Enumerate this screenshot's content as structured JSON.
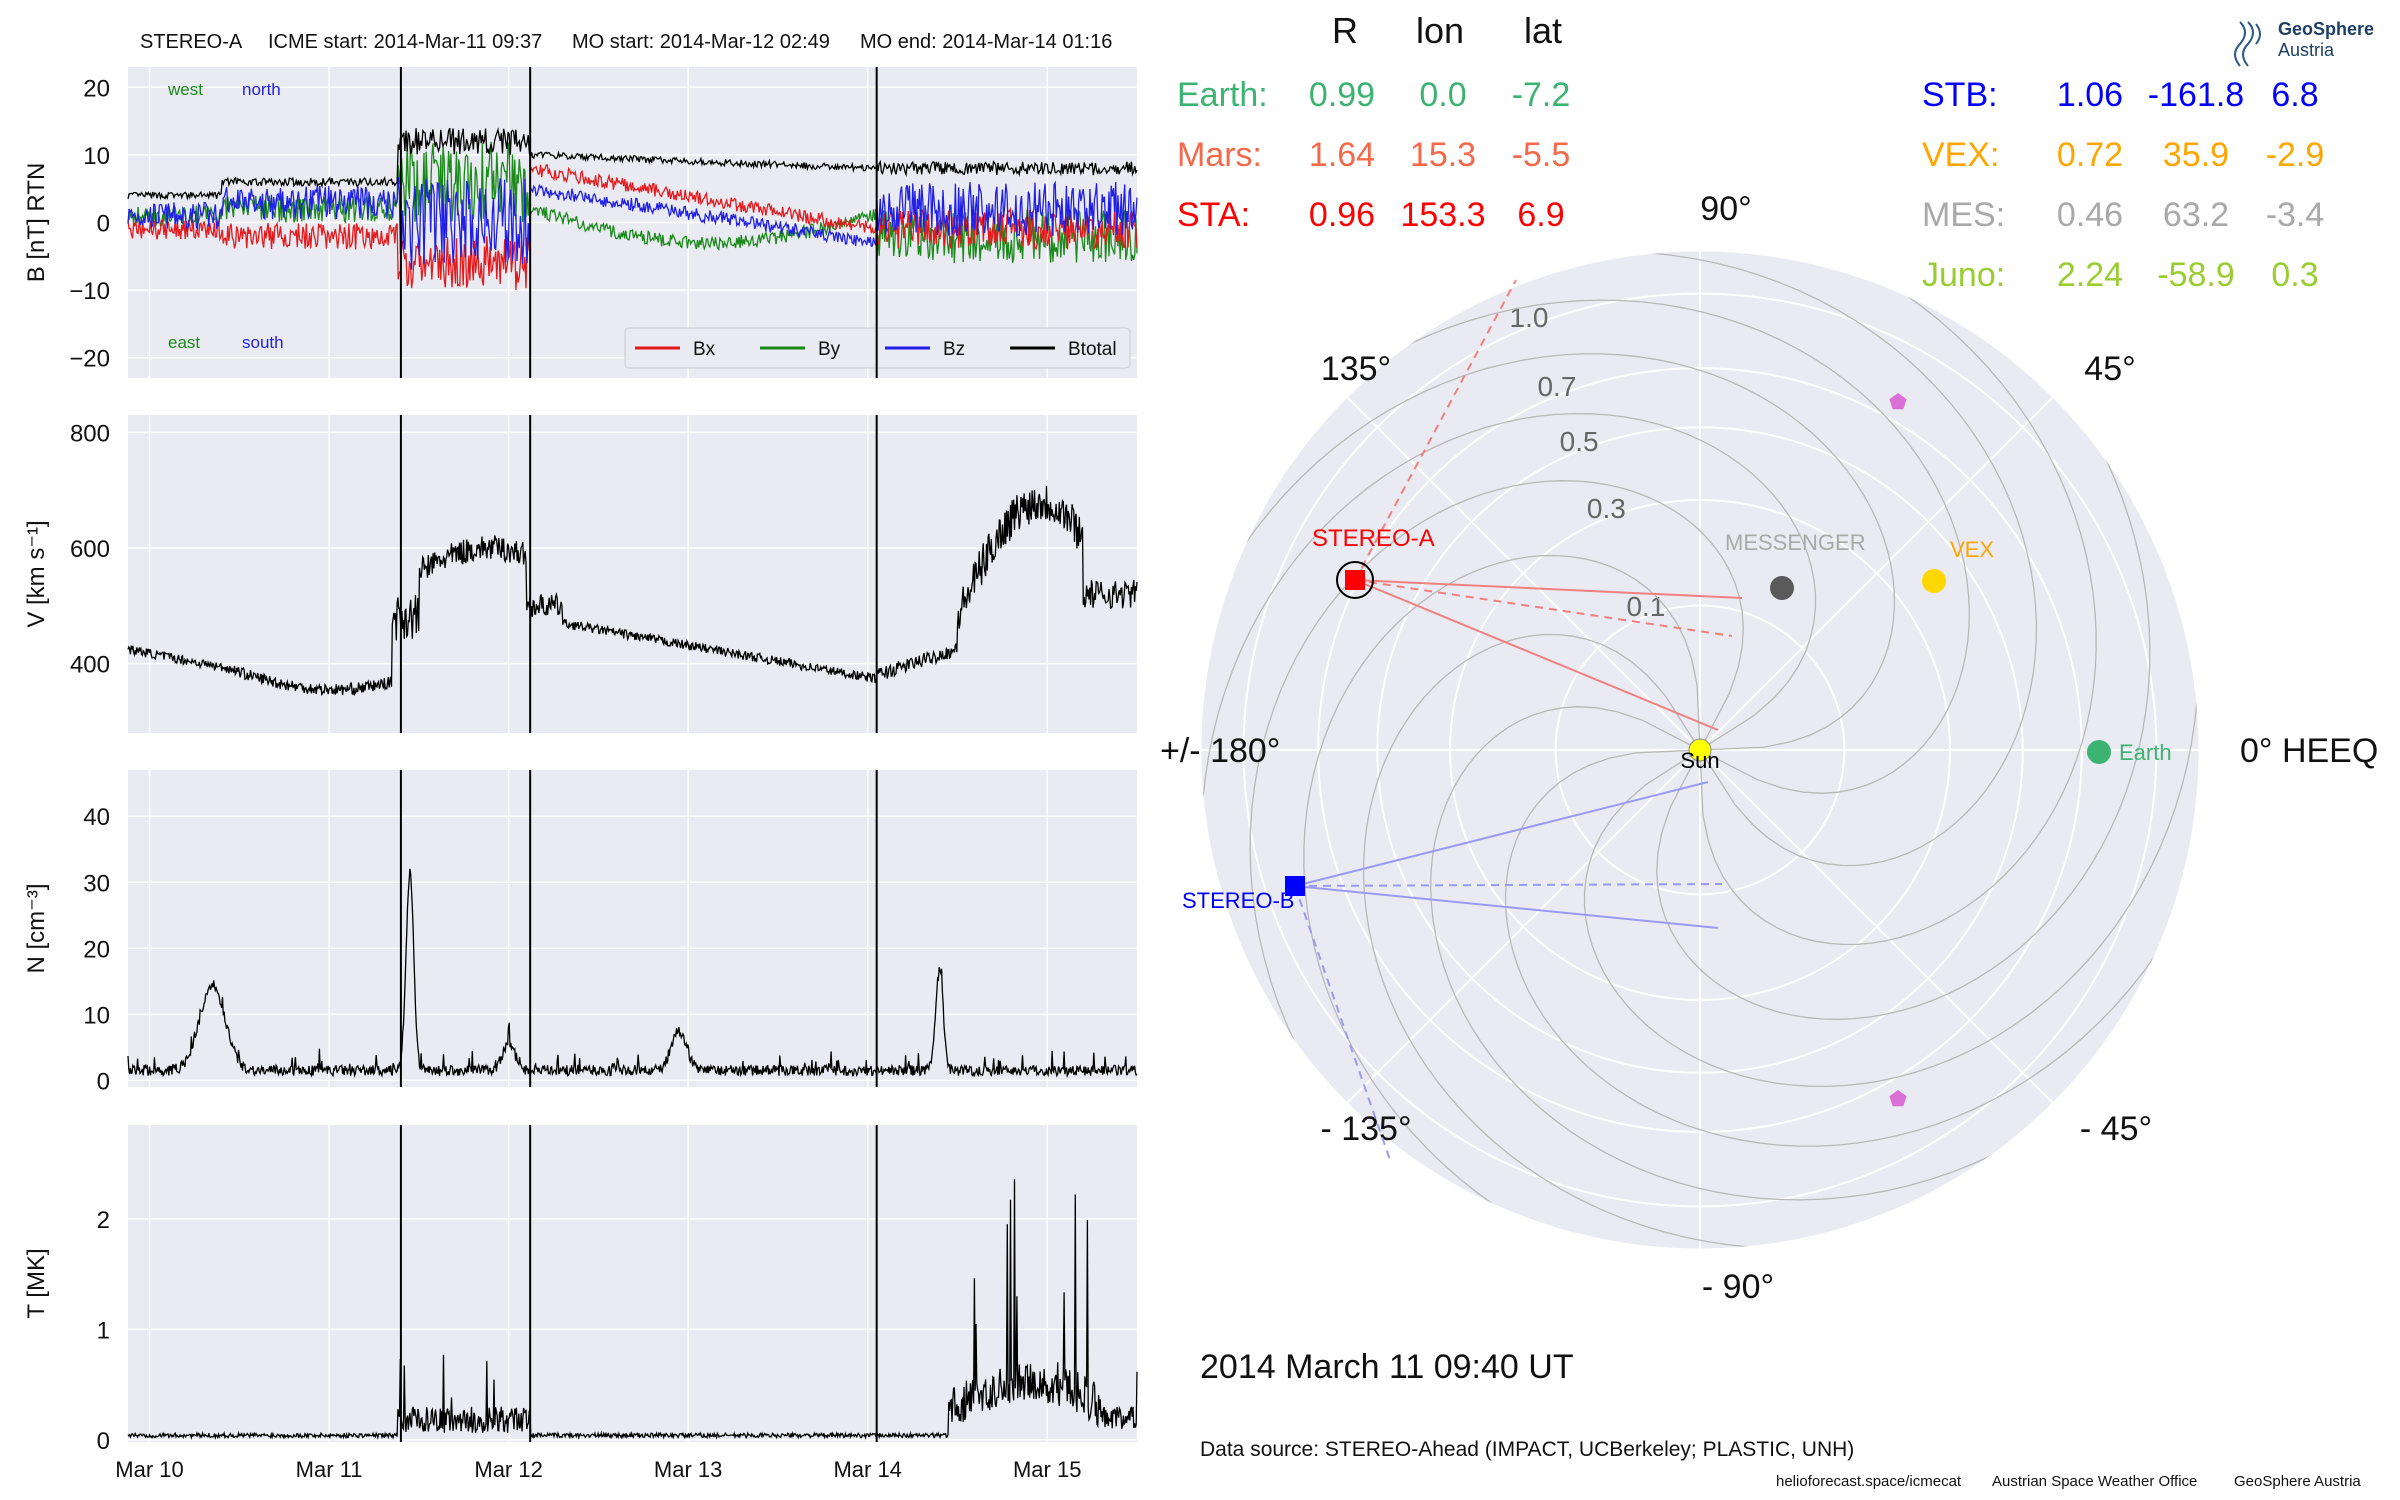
{
  "header": {
    "spacecraft": "STEREO-A",
    "icme_start": "ICME start: 2014-Mar-11 09:37",
    "mo_start": "MO start: 2014-Mar-12 02:49",
    "mo_end": "MO end: 2014-Mar-14 01:16"
  },
  "colors": {
    "panel_bg": "#eaeaf2",
    "grid": "#ffffff",
    "bx": "#e41a1c",
    "by": "#1a8a1a",
    "bz": "#1f1fe6",
    "btotal": "#000000",
    "earth": "#3cb371",
    "mars": "#f4694a",
    "sta": "#ff0000",
    "stb": "#0000ff",
    "vex": "#ffa500",
    "mes": "#a9a9a9",
    "juno": "#9acd32",
    "psp": "#da70d6",
    "sun": "#ffff00"
  },
  "timeseries": {
    "x_ticks": [
      "Mar 10",
      "Mar 11",
      "Mar 12",
      "Mar 13",
      "Mar 14",
      "Mar 15"
    ],
    "x_range_days": [
      9.88,
      15.5
    ],
    "event_lines_days": [
      11.4,
      12.12,
      14.05
    ],
    "panels": [
      {
        "id": "mag",
        "ylabel": "B [nT] RTN",
        "ylim": [
          -23,
          23
        ],
        "yticks": [
          "20",
          "10",
          "0",
          "−10",
          "−20"
        ],
        "ytick_values": [
          20,
          10,
          0,
          -10,
          -20
        ],
        "corner_labels": {
          "west": "west",
          "north": "north",
          "east": "east",
          "south": "south"
        },
        "legend": [
          "Bx",
          "By",
          "Bz",
          "Btotal"
        ]
      },
      {
        "id": "speed",
        "ylabel": "V [km s⁻¹]",
        "ylim": [
          280,
          830
        ],
        "yticks": [
          "800",
          "600",
          "400"
        ],
        "ytick_values": [
          800,
          600,
          400
        ]
      },
      {
        "id": "density",
        "ylabel": "N [cm⁻³]",
        "ylim": [
          -1,
          47
        ],
        "yticks": [
          "40",
          "30",
          "20",
          "10",
          "0"
        ],
        "ytick_values": [
          40,
          30,
          20,
          10,
          0
        ]
      },
      {
        "id": "temperature",
        "ylabel": "T [MK]",
        "ylim": [
          -0.02,
          2.85
        ],
        "yticks": [
          "2",
          "1",
          "0"
        ],
        "ytick_values": [
          2,
          1,
          0
        ]
      }
    ]
  },
  "table": {
    "headers": [
      "R",
      "lon",
      "lat"
    ],
    "left": [
      {
        "name": "Earth:",
        "R": "0.99",
        "lon": "0.0",
        "lat": "-7.2",
        "color_key": "earth"
      },
      {
        "name": "Mars:",
        "R": "1.64",
        "lon": "15.3",
        "lat": "-5.5",
        "color_key": "mars"
      },
      {
        "name": "STA:",
        "R": "0.96",
        "lon": "153.3",
        "lat": "6.9",
        "color_key": "sta"
      }
    ],
    "right": [
      {
        "name": "STB:",
        "R": "1.06",
        "lon": "-161.8",
        "lat": "6.8",
        "color_key": "stb"
      },
      {
        "name": "VEX:",
        "R": "0.72",
        "lon": "35.9",
        "lat": "-2.9",
        "color_key": "vex"
      },
      {
        "name": "MES:",
        "R": "0.46",
        "lon": "63.2",
        "lat": "-3.4",
        "color_key": "mes"
      },
      {
        "name": "Juno:",
        "R": "2.24",
        "lon": "-58.9",
        "lat": "0.3",
        "color_key": "juno"
      }
    ]
  },
  "polar": {
    "angle_labels": {
      "a0": "0° HEEQ",
      "a45": "45°",
      "a90": "90°",
      "a135": "135°",
      "a180": "+/- 180°",
      "am135": "- 135°",
      "am90": "- 90°",
      "am45": "- 45°"
    },
    "radial_labels": [
      "0.1",
      "0.3",
      "0.5",
      "0.7",
      "1.0"
    ],
    "radial_values": [
      0.1,
      0.3,
      0.5,
      0.7,
      1.0
    ],
    "bodies": [
      {
        "name": "Sun",
        "label": "Sun",
        "r": 0.0,
        "lon": 0.0
      },
      {
        "name": "Earth",
        "label": "Earth",
        "r": 0.99,
        "lon": 0.0
      },
      {
        "name": "STEREO-A",
        "label": "STEREO-A",
        "r": 0.96,
        "lon": 153.3
      },
      {
        "name": "STEREO-B",
        "label": "STEREO-B",
        "r": 1.06,
        "lon": -161.8
      },
      {
        "name": "MESSENGER",
        "label": "MESSENGER",
        "r": 0.46,
        "lon": 63.2
      },
      {
        "name": "VEX",
        "label": "VEX",
        "r": 0.72,
        "lon": 35.9
      }
    ]
  },
  "datetime": "2014 March 11  09:40 UT",
  "source": "Data source: STEREO-Ahead (IMPACT, UCBerkeley; PLASTIC, UNH)",
  "footer": {
    "site": "helioforecast.space/icmecat",
    "office": "Austrian Space Weather Office",
    "org": "GeoSphere Austria"
  },
  "logo": {
    "line1": "GeoSphere",
    "line2": "Austria"
  }
}
